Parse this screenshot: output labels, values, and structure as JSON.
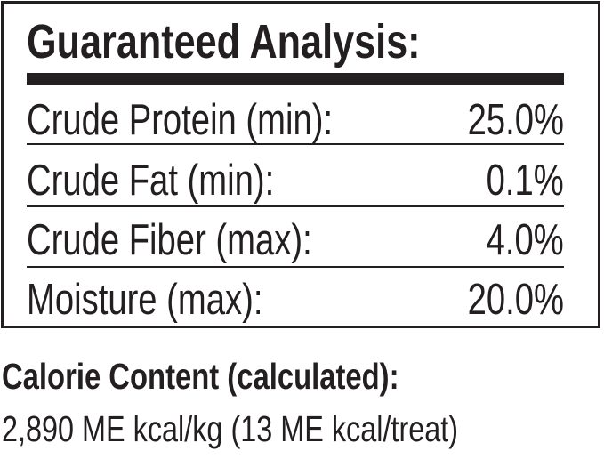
{
  "title": "Guaranteed Analysis:",
  "rows": [
    {
      "label": "Crude Protein (min):",
      "value": "25.0%"
    },
    {
      "label": "Crude Fat (min):",
      "value": "0.1%"
    },
    {
      "label": "Crude Fiber (max):",
      "value": "4.0%"
    },
    {
      "label": "Moisture (max):",
      "value": "20.0%"
    }
  ],
  "calorie": {
    "heading": "Calorie Content (calculated):",
    "value": "2,890 ME kcal/kg (13 ME kcal/treat)"
  }
}
